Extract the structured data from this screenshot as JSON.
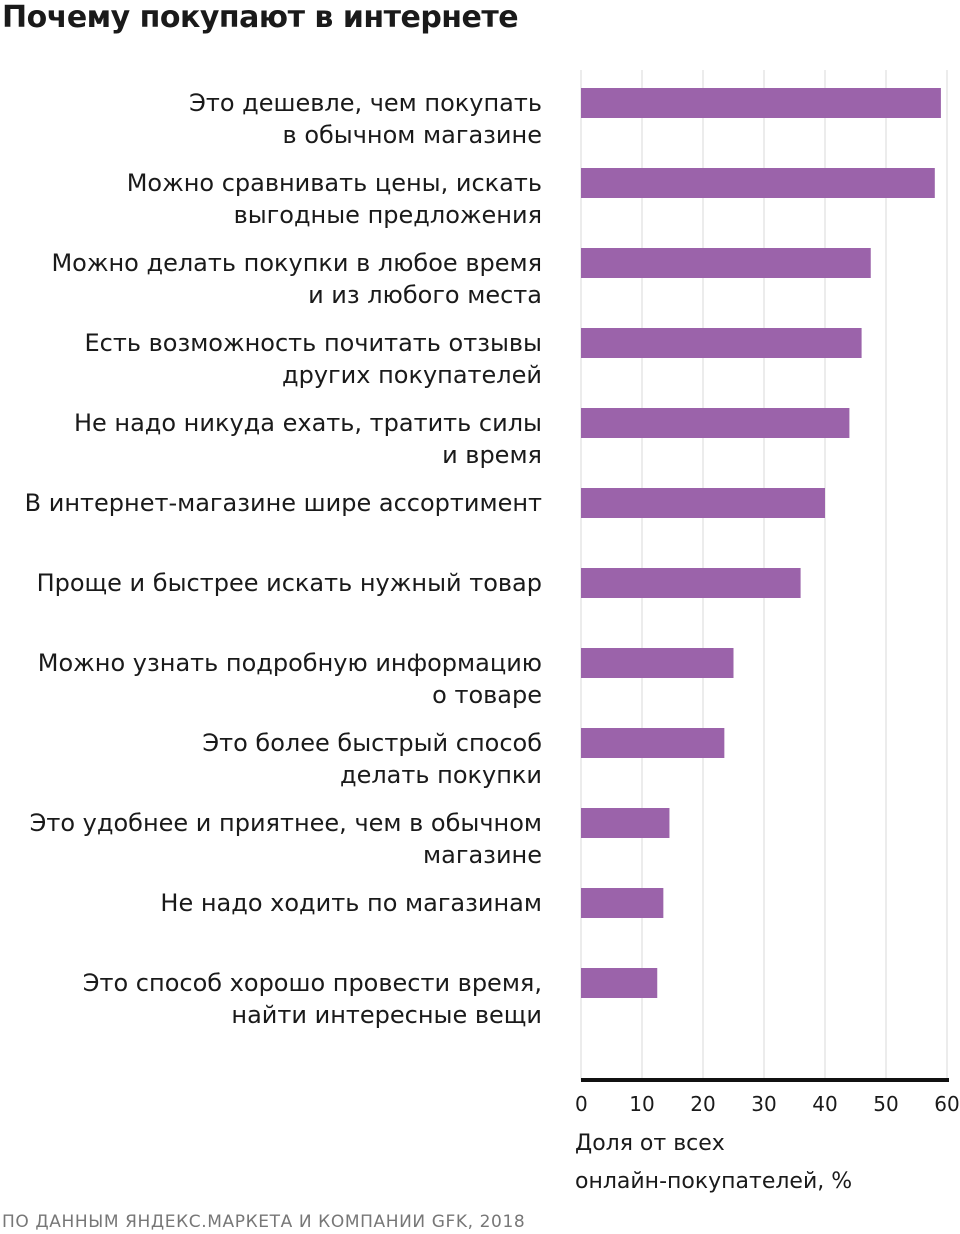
{
  "title": "Почему покупают в интернете",
  "source": "ПО ДАННЫМ ЯНДЕКС.МАРКЕТА И КОМПАНИИ GFK, 2018",
  "colors": {
    "bar": "#9b63aa",
    "grid": "#d9d9d9",
    "axis": "#111111"
  },
  "chart_data": {
    "type": "bar",
    "orientation": "horizontal",
    "title": "Почему покупают в интернете",
    "xlabel": [
      "Доля от всех",
      "онлайн-покупателей, %"
    ],
    "xlim": [
      0,
      60
    ],
    "xticks": [
      0,
      10,
      20,
      30,
      40,
      50,
      60
    ],
    "grid": true,
    "categories": [
      [
        "Это дешевле, чем покупать",
        "в обычном магазине"
      ],
      [
        "Можно сравнивать цены, искать",
        "выгодные предложения"
      ],
      [
        "Можно делать покупки в любое время",
        "и из любого места"
      ],
      [
        "Есть возможность почитать отзывы",
        "других покупателей"
      ],
      [
        "Не надо никуда ехать, тратить силы",
        "и время"
      ],
      [
        "В интернет-магазине шире ассортимент"
      ],
      [
        "Проще и быстрее искать нужный товар"
      ],
      [
        "Можно узнать подробную информацию",
        "о товаре"
      ],
      [
        "Это более быстрый способ",
        "делать покупки"
      ],
      [
        "Это удобнее и приятнее, чем в обычном",
        "магазине"
      ],
      [
        "Не надо ходить по магазинам"
      ],
      [
        "Это способ хорошо провести время,",
        "найти интересные вещи"
      ]
    ],
    "values": [
      59,
      58,
      47.5,
      46,
      44,
      40,
      36,
      25,
      23.5,
      14.5,
      13.5,
      12.5
    ]
  }
}
